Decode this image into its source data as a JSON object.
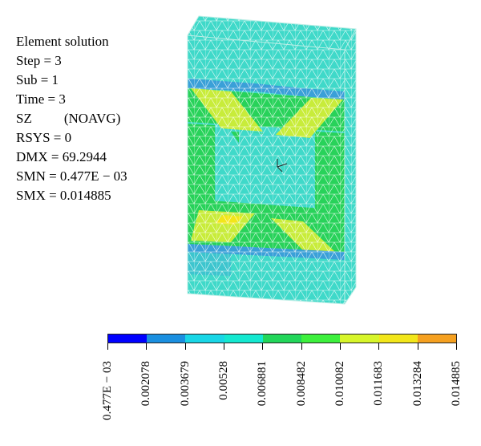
{
  "info": {
    "title": "Element solution",
    "step": "Step = 3",
    "sub": "Sub = 1",
    "time": "Time = 3",
    "sz_label": "SZ",
    "sz_value": "(NOAVG)",
    "rsys": "RSYS = 0",
    "dmx": "DMX = 69.2944",
    "smn": "SMN = 0.477E − 03",
    "smx": "SMX = 0.014885"
  },
  "legend": {
    "colors": [
      "#0000ff",
      "#1a8fe0",
      "#19d6e6",
      "#14e8d0",
      "#22d65a",
      "#3df03d",
      "#d7f52a",
      "#f2e61a",
      "#f5a020",
      "#ff0000"
    ],
    "labels": [
      "0.477E − 03",
      "0.002078",
      "0.003679",
      "0.00528",
      "0.006881",
      "0.008482",
      "0.010082",
      "0.011683",
      "0.013284",
      "0.014885"
    ]
  },
  "model_colors": {
    "base": "#3fd9c9",
    "green": "#28d25a",
    "yellow": "#c8ec3a",
    "blue_band": "#3aa0d8",
    "mesh": "#ffffff"
  }
}
